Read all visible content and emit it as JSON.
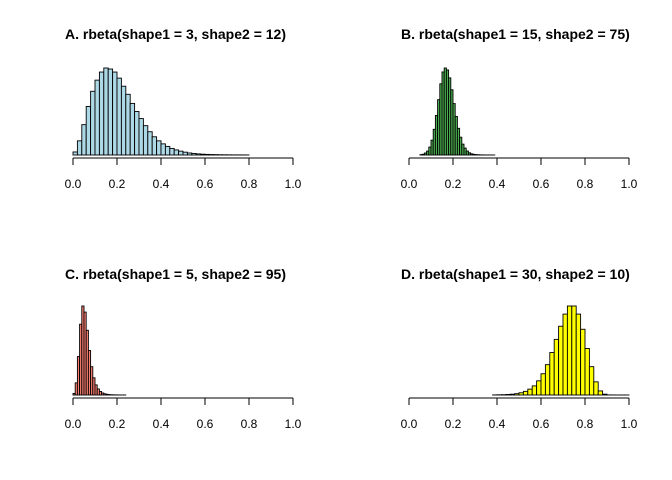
{
  "chart_data": [
    {
      "type": "histogram",
      "title": "A. rbeta(shape1 = 3, shape2 = 12)",
      "fill": "#ADD8E6",
      "xlim": [
        0,
        1
      ],
      "ticks": [
        "0.0",
        "0.2",
        "0.4",
        "0.6",
        "0.8",
        "1.0"
      ],
      "tick_values": [
        0,
        0.2,
        0.4,
        0.6,
        0.8,
        1.0
      ],
      "bin_width": 0.02,
      "bin_start": 0.0,
      "counts": [
        3,
        14,
        30,
        48,
        63,
        74,
        82,
        86,
        85,
        82,
        76,
        68,
        60,
        51,
        43,
        36,
        29,
        23,
        18,
        14,
        11,
        8.5,
        6.5,
        5,
        3.8,
        2.8,
        2,
        1.5,
        1.1,
        0.8,
        0.6,
        0.45,
        0.35,
        0.25,
        0.2,
        0.15,
        0.12,
        0.1,
        0.08,
        0.06
      ]
    },
    {
      "type": "histogram",
      "title": "B. rbeta(shape1 = 15, shape2 = 75)",
      "fill": "#4CAF50",
      "xlim": [
        0,
        1
      ],
      "ticks": [
        "0.0",
        "0.2",
        "0.4",
        "0.6",
        "0.8",
        "1.0"
      ],
      "tick_values": [
        0,
        0.2,
        0.4,
        0.6,
        0.8,
        1.0
      ],
      "bin_width": 0.01,
      "bin_start": 0.05,
      "counts": [
        0.4,
        0.8,
        2,
        4,
        8,
        15,
        26,
        40,
        56,
        72,
        84,
        88,
        86,
        78,
        66,
        52,
        39,
        27,
        18,
        11,
        7,
        4,
        2.2,
        1.2,
        0.7,
        0.4,
        0.25,
        0.15,
        0.1,
        0.06,
        0.05,
        0.04,
        0.03,
        0.03
      ]
    },
    {
      "type": "histogram",
      "title": "C. rbeta(shape1 = 5, shape2 = 95)",
      "fill": "#FA8072",
      "xlim": [
        0,
        1
      ],
      "ticks": [
        "0.0",
        "0.2",
        "0.4",
        "0.6",
        "0.8",
        "1.0"
      ],
      "tick_values": [
        0,
        0.2,
        0.4,
        0.6,
        0.8,
        1.0
      ],
      "bin_width": 0.01,
      "bin_start": 0.0,
      "counts": [
        1.5,
        12,
        38,
        70,
        88,
        82,
        64,
        44,
        28,
        17,
        10,
        6,
        3.5,
        2,
        1.2,
        0.7,
        0.4,
        0.25,
        0.15,
        0.1,
        0.07,
        0.05,
        0.04,
        0.03
      ]
    },
    {
      "type": "histogram",
      "title": "D. rbeta(shape1 = 30, shape2 = 10)",
      "fill": "#FFFF00",
      "xlim": [
        0,
        1
      ],
      "ticks": [
        "0.0",
        "0.2",
        "0.4",
        "0.6",
        "0.8",
        "1.0"
      ],
      "tick_values": [
        0,
        0.2,
        0.4,
        0.6,
        0.8,
        1.0
      ],
      "bin_width": 0.02,
      "bin_start": 0.38,
      "counts": [
        0.1,
        0.2,
        0.3,
        0.5,
        0.8,
        1.3,
        2.2,
        3.6,
        5.8,
        9,
        14,
        21,
        30,
        42,
        55,
        68,
        80,
        88,
        88,
        80,
        65,
        46,
        28,
        13,
        4,
        0.8,
        0.1,
        0.05,
        0.02,
        0.01,
        0.005
      ]
    }
  ]
}
